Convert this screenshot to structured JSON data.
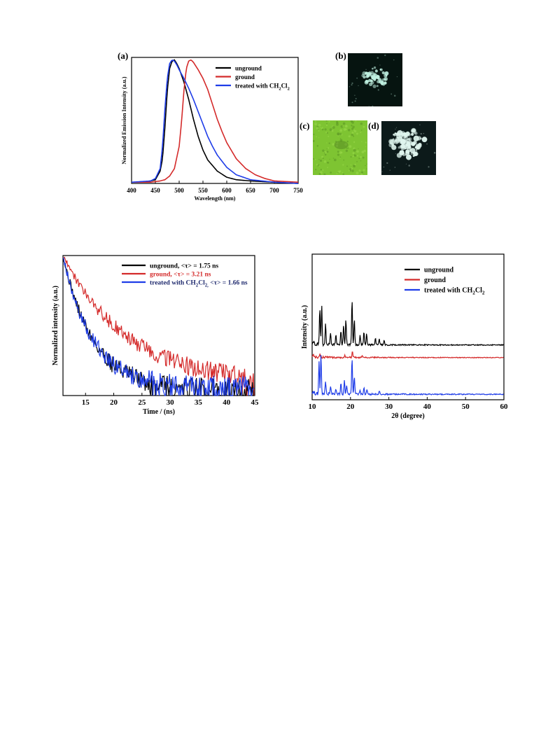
{
  "chart_data": [
    {
      "type": "line",
      "panel_label": "(a)",
      "xlabel": "Wavelength (nm)",
      "ylabel": "Normalized Emission Intensity (a.u.)",
      "xlim": [
        400,
        750
      ],
      "ylim": [
        0,
        1.02
      ],
      "xticks": [
        400,
        450,
        500,
        550,
        600,
        650,
        700,
        750
      ],
      "yticks_shown": false,
      "grid": false,
      "legend_position": "top-right",
      "series": [
        {
          "name": "unground",
          "color": "#000000",
          "x": [
            400,
            420,
            440,
            450,
            460,
            465,
            470,
            475,
            480,
            485,
            490,
            495,
            500,
            510,
            520,
            530,
            540,
            550,
            560,
            580,
            600,
            620,
            650,
            700,
            750
          ],
          "y": [
            0.01,
            0.01,
            0.02,
            0.03,
            0.1,
            0.2,
            0.45,
            0.75,
            0.93,
            0.99,
            1.0,
            0.97,
            0.93,
            0.82,
            0.68,
            0.52,
            0.38,
            0.27,
            0.19,
            0.1,
            0.05,
            0.03,
            0.02,
            0.01,
            0.0
          ]
        },
        {
          "name": "ground",
          "color": "#d42a2a",
          "x": [
            400,
            440,
            460,
            470,
            480,
            490,
            500,
            505,
            510,
            515,
            520,
            525,
            530,
            540,
            550,
            560,
            570,
            580,
            590,
            600,
            620,
            640,
            660,
            680,
            700,
            750
          ],
          "y": [
            0.01,
            0.01,
            0.02,
            0.03,
            0.06,
            0.12,
            0.3,
            0.5,
            0.75,
            0.93,
            0.99,
            1.0,
            0.98,
            0.92,
            0.85,
            0.76,
            0.64,
            0.52,
            0.42,
            0.33,
            0.2,
            0.12,
            0.07,
            0.04,
            0.02,
            0.01
          ]
        },
        {
          "name": "treated with CH2Cl2",
          "color": "#1f3de8",
          "x": [
            400,
            440,
            450,
            460,
            465,
            470,
            475,
            480,
            485,
            490,
            495,
            500,
            510,
            520,
            530,
            540,
            550,
            560,
            570,
            580,
            600,
            620,
            650,
            700,
            750
          ],
          "y": [
            0.01,
            0.02,
            0.04,
            0.12,
            0.3,
            0.6,
            0.85,
            0.97,
            1.0,
            0.99,
            0.96,
            0.92,
            0.85,
            0.77,
            0.68,
            0.58,
            0.48,
            0.38,
            0.3,
            0.23,
            0.13,
            0.07,
            0.03,
            0.01,
            0.0
          ]
        }
      ]
    },
    {
      "type": "line",
      "xlabel": "Time / (ns)",
      "ylabel": "Normalized intensity (a.u.)",
      "xlim": [
        11,
        45
      ],
      "ylim": [
        0,
        1.0
      ],
      "xticks": [
        15,
        20,
        25,
        30,
        35,
        40,
        45
      ],
      "yticks_shown": false,
      "grid": false,
      "legend_position": "top-right",
      "series": [
        {
          "name": "unground, <τ> = 1.75 ns",
          "color": "#000000",
          "tau": 1.75,
          "noise_floor": 0.05
        },
        {
          "name": "ground, <τ> = 3.21 ns",
          "color": "#d42a2a",
          "tau": 3.21,
          "noise_floor": 0.1
        },
        {
          "name": "treated with CH2Cl2, <τ> = 1.66 ns",
          "color": "#1f3de8",
          "tau": 1.66,
          "noise_floor": 0.05
        }
      ]
    },
    {
      "type": "line",
      "xlabel": "2θ (degree)",
      "ylabel": "Intensity (a.u.)",
      "xlim": [
        10,
        60
      ],
      "xticks": [
        10,
        20,
        30,
        40,
        50,
        60
      ],
      "yticks_shown": false,
      "grid": false,
      "legend_position": "top-right",
      "series": [
        {
          "name": "unground",
          "color": "#000000",
          "offset": 0.6,
          "peaks": [
            [
              12.0,
              0.8
            ],
            [
              12.5,
              0.85
            ],
            [
              13.5,
              0.45
            ],
            [
              14.8,
              0.25
            ],
            [
              16.2,
              0.2
            ],
            [
              17.5,
              0.3
            ],
            [
              18.2,
              0.45
            ],
            [
              18.8,
              0.55
            ],
            [
              20.4,
              1.0
            ],
            [
              21.0,
              0.55
            ],
            [
              22.5,
              0.2
            ],
            [
              23.5,
              0.3
            ],
            [
              24.2,
              0.25
            ],
            [
              26.5,
              0.15
            ],
            [
              27.5,
              0.15
            ],
            [
              28.8,
              0.1
            ]
          ]
        },
        {
          "name": "ground",
          "color": "#d42a2a",
          "offset": 0.45,
          "peaks": [
            [
              12.0,
              0.06
            ],
            [
              18.5,
              0.05
            ],
            [
              20.5,
              0.12
            ],
            [
              23.0,
              0.04
            ]
          ]
        },
        {
          "name": "treated with CH2Cl2",
          "color": "#1f3de8",
          "offset": 0.0,
          "peaks": [
            [
              11.8,
              0.7
            ],
            [
              12.3,
              0.85
            ],
            [
              13.5,
              0.3
            ],
            [
              14.8,
              0.15
            ],
            [
              16.2,
              0.12
            ],
            [
              17.5,
              0.25
            ],
            [
              18.4,
              0.3
            ],
            [
              19.0,
              0.2
            ],
            [
              20.4,
              0.8
            ],
            [
              21.0,
              0.4
            ],
            [
              22.5,
              0.1
            ],
            [
              23.5,
              0.15
            ],
            [
              24.3,
              0.12
            ],
            [
              27.5,
              0.08
            ]
          ]
        }
      ]
    }
  ],
  "legends": {
    "pl": [
      {
        "text": "unground",
        "color": "#000000"
      },
      {
        "text": "ground",
        "color": "#d42a2a"
      },
      {
        "text": "treated with CH",
        "sub1": "2",
        "mid": "Cl",
        "sub2": "2",
        "color": "#1f3de8"
      }
    ],
    "decay": [
      {
        "text": "unground, <τ> = 1.75 ns",
        "color": "#000000",
        "textcolor": "#000000"
      },
      {
        "text": "ground, <τ> = 3.21 ns",
        "color": "#d42a2a",
        "textcolor": "#d42a2a"
      },
      {
        "text": "treated with CH",
        "sub1": "2",
        "mid": "Cl",
        "sub2": "2,",
        "tail": " <τ> = 1.66 ns",
        "color": "#1f3de8",
        "textcolor": "#1f2a6e"
      }
    ],
    "xrd": [
      {
        "text": "unground",
        "color": "#000000"
      },
      {
        "text": "ground",
        "color": "#d42a2a"
      },
      {
        "text": "treated with CH",
        "sub1": "2",
        "mid": "Cl",
        "sub2": "2",
        "color": "#1f3de8"
      }
    ]
  },
  "photos": {
    "b": {
      "label": "(b)",
      "bg": "#061410",
      "glow": "#bff0e0"
    },
    "c": {
      "label": "(c)",
      "bg": "#7ec432",
      "glow": "#3f6a1a"
    },
    "d": {
      "label": "(d)",
      "bg": "#0c1a1a",
      "glow": "#dff5ee"
    }
  }
}
